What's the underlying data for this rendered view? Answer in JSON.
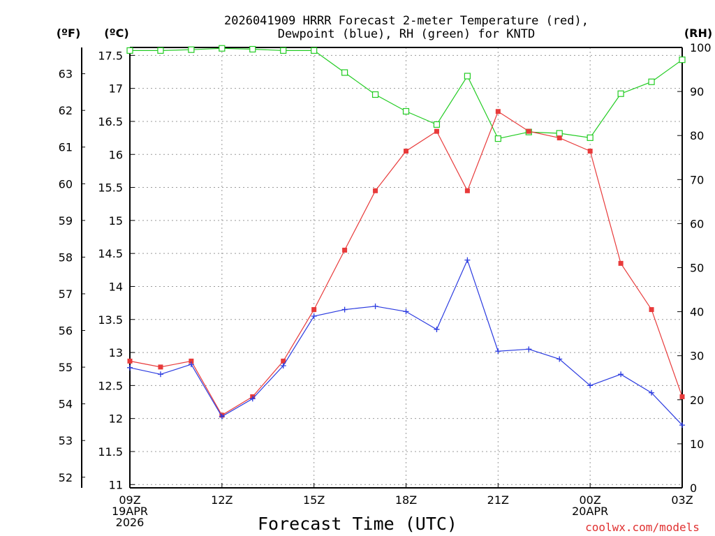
{
  "chart_data": {
    "type": "line",
    "title_lines": [
      "2026041909 HRRR Forecast 2-meter Temperature (red),",
      "Dewpoint (blue), RH (green) for KNTD"
    ],
    "xlabel": "Forecast Time (UTC)",
    "credit": "coolwx.com/models",
    "unit_labels": {
      "fahrenheit": "(ºF)",
      "celsius": "(ºC)",
      "rh": "(RH)"
    },
    "x_hours": [
      0,
      1,
      2,
      3,
      4,
      5,
      6,
      7,
      8,
      9,
      10,
      11,
      12,
      13,
      14,
      15,
      16,
      17,
      18
    ],
    "x_ticks": [
      {
        "hour": 0,
        "lines": [
          "09Z",
          "19APR",
          "2026"
        ]
      },
      {
        "hour": 3,
        "lines": [
          "12Z"
        ]
      },
      {
        "hour": 6,
        "lines": [
          "15Z"
        ]
      },
      {
        "hour": 9,
        "lines": [
          "18Z"
        ]
      },
      {
        "hour": 12,
        "lines": [
          "21Z"
        ]
      },
      {
        "hour": 15,
        "lines": [
          "00Z",
          "20APR"
        ]
      },
      {
        "hour": 18,
        "lines": [
          "03Z"
        ]
      }
    ],
    "celsius_range": [
      10.95,
      17.62
    ],
    "celsius_ticks": [
      "11",
      "11.5",
      "12",
      "12.5",
      "13",
      "13.5",
      "14",
      "14.5",
      "15",
      "15.5",
      "16",
      "16.5",
      "17",
      "17.5"
    ],
    "fahrenheit_ticks": [
      "52",
      "53",
      "54",
      "55",
      "56",
      "57",
      "58",
      "59",
      "60",
      "61",
      "62",
      "63"
    ],
    "rh_range": [
      0,
      100
    ],
    "rh_ticks": [
      "0",
      "10",
      "20",
      "30",
      "40",
      "50",
      "60",
      "70",
      "80",
      "90",
      "100"
    ],
    "grid": true,
    "series": [
      {
        "name": "2-meter Temperature",
        "axis": "celsius",
        "color": "#e83a3a",
        "marker": "filled-square",
        "values": [
          12.87,
          12.78,
          12.87,
          12.05,
          12.33,
          12.87,
          13.65,
          14.55,
          15.45,
          16.05,
          16.35,
          15.45,
          16.65,
          16.35,
          16.25,
          16.05,
          14.35,
          13.65,
          12.33
        ]
      },
      {
        "name": "Dewpoint",
        "axis": "celsius",
        "color": "#2a3ae0",
        "marker": "plus",
        "values": [
          12.77,
          12.67,
          12.82,
          12.03,
          12.3,
          12.8,
          13.55,
          13.65,
          13.7,
          13.62,
          13.35,
          14.4,
          13.02,
          13.05,
          12.9,
          12.5,
          12.67,
          12.39,
          11.9
        ]
      },
      {
        "name": "RH",
        "axis": "rh",
        "color": "#22cc22",
        "marker": "open-square",
        "values": [
          99.3,
          99.3,
          99.5,
          99.8,
          99.6,
          99.3,
          99.3,
          94.3,
          89.3,
          85.5,
          82.5,
          93.5,
          79.3,
          80.8,
          80.5,
          79.5,
          89.5,
          92.2,
          97.2
        ]
      }
    ]
  }
}
